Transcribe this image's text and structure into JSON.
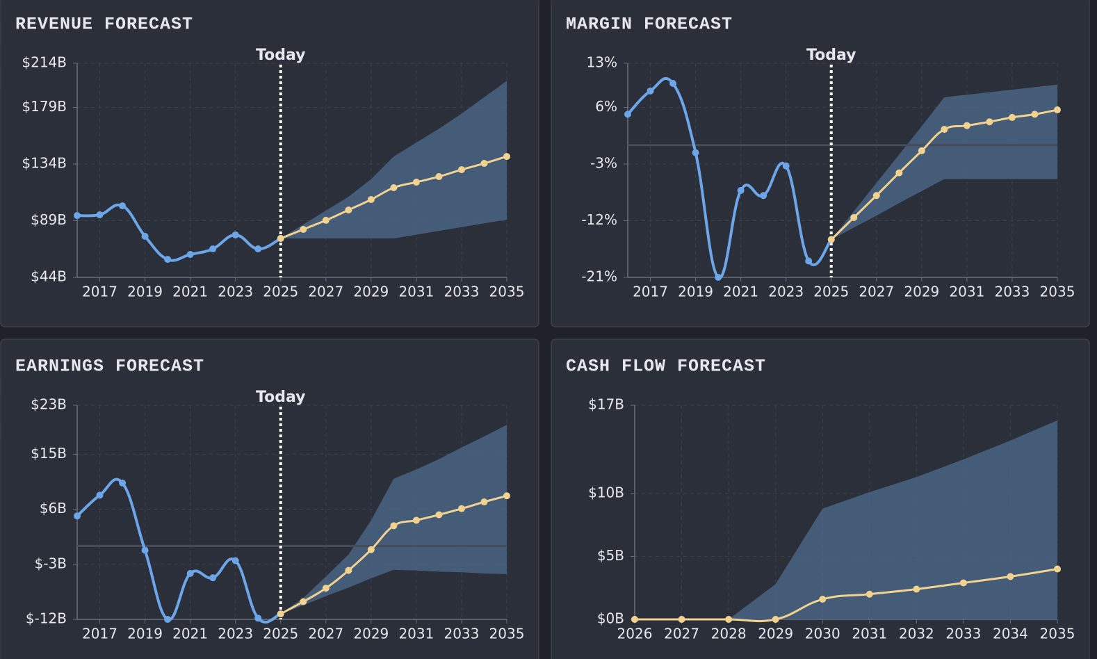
{
  "chart_data": [
    {
      "type": "line",
      "title": "REVENUE FORECAST",
      "x": [
        2016,
        2017,
        2018,
        2019,
        2020,
        2021,
        2022,
        2023,
        2024,
        2025,
        2026,
        2027,
        2028,
        2029,
        2030,
        2031,
        2032,
        2033,
        2034,
        2035
      ],
      "xlim": [
        2016,
        2035
      ],
      "xticks": [
        2017,
        2019,
        2021,
        2023,
        2025,
        2027,
        2029,
        2031,
        2033,
        2035
      ],
      "ylim": [
        44,
        214
      ],
      "yticks": [
        {
          "value": 44,
          "label": "$44B"
        },
        {
          "value": 89,
          "label": "$89B"
        },
        {
          "value": 134,
          "label": "$134B"
        },
        {
          "value": 179,
          "label": "$179B"
        },
        {
          "value": 214,
          "label": "$214B"
        }
      ],
      "grid": true,
      "annotation": {
        "x": 2025,
        "label": "Today"
      },
      "series": [
        {
          "color": "#6ca6e8",
          "values": [
            93.1,
            93.7,
            100.8,
            76.6,
            58.3,
            62.2,
            66.6,
            77.7,
            66.6,
            74.9,
            null,
            null,
            null,
            null,
            null,
            null,
            null,
            null,
            null,
            null
          ]
        },
        {
          "color": "#f2d28f",
          "values": [
            null,
            null,
            null,
            null,
            null,
            null,
            null,
            null,
            null,
            74.9,
            82.1,
            89.3,
            97.5,
            105.8,
            115.2,
            119.6,
            124.0,
            129.5,
            134.5,
            140.0
          ]
        }
      ],
      "band": {
        "color": "#4a6485",
        "low": [
          null,
          null,
          null,
          null,
          null,
          null,
          null,
          null,
          null,
          74.9,
          74.9,
          74.9,
          74.9,
          74.9,
          74.9,
          77.9,
          80.9,
          83.9,
          86.9,
          89.8
        ],
        "high": [
          null,
          null,
          null,
          null,
          null,
          null,
          null,
          null,
          null,
          74.9,
          86,
          97,
          108,
          122,
          140,
          151,
          162,
          174,
          187,
          200
        ]
      }
    },
    {
      "type": "line",
      "title": "MARGIN FORECAST",
      "x": [
        2016,
        2017,
        2018,
        2019,
        2020,
        2021,
        2022,
        2023,
        2024,
        2025,
        2026,
        2027,
        2028,
        2029,
        2030,
        2031,
        2032,
        2033,
        2034,
        2035
      ],
      "xlim": [
        2016,
        2035
      ],
      "xticks": [
        2017,
        2019,
        2021,
        2023,
        2025,
        2027,
        2029,
        2031,
        2033,
        2035
      ],
      "ylim": [
        -21,
        13
      ],
      "yticks": [
        {
          "value": -21,
          "label": "-21%"
        },
        {
          "value": -12,
          "label": "-12%"
        },
        {
          "value": -3,
          "label": "-3%"
        },
        {
          "value": 6,
          "label": "6%"
        },
        {
          "value": 13,
          "label": "13%"
        }
      ],
      "grid": true,
      "annotation": {
        "x": 2025,
        "label": "Today"
      },
      "series": [
        {
          "color": "#6ca6e8",
          "values": [
            4.9,
            8.6,
            9.8,
            -1.2,
            -21,
            -7.2,
            -8.0,
            -3.3,
            -18.4,
            -15.0,
            null,
            null,
            null,
            null,
            null,
            null,
            null,
            null,
            null,
            null
          ]
        },
        {
          "color": "#f2d28f",
          "values": [
            null,
            null,
            null,
            null,
            null,
            null,
            null,
            null,
            null,
            -15.0,
            -11.5,
            -8.0,
            -4.4,
            -0.9,
            2.5,
            3.1,
            3.7,
            4.4,
            4.9,
            5.6
          ]
        }
      ],
      "band": {
        "color": "#4a6485",
        "low": [
          null,
          null,
          null,
          null,
          null,
          null,
          null,
          null,
          null,
          -15,
          -13.1,
          -11.2,
          -9.2,
          -7.3,
          -5.4,
          -5.4,
          -5.4,
          -5.4,
          -5.4,
          -5.4
        ],
        "high": [
          null,
          null,
          null,
          null,
          null,
          null,
          null,
          null,
          null,
          -15,
          -10.5,
          -6,
          -1.5,
          3,
          7.6,
          8.0,
          8.4,
          8.8,
          9.2,
          9.6
        ]
      }
    },
    {
      "type": "line",
      "title": "EARNINGS FORECAST",
      "x": [
        2016,
        2017,
        2018,
        2019,
        2020,
        2021,
        2022,
        2023,
        2024,
        2025,
        2026,
        2027,
        2028,
        2029,
        2030,
        2031,
        2032,
        2033,
        2034,
        2035
      ],
      "xlim": [
        2016,
        2035
      ],
      "xticks": [
        2017,
        2019,
        2021,
        2023,
        2025,
        2027,
        2029,
        2031,
        2033,
        2035
      ],
      "ylim": [
        -12,
        23
      ],
      "yticks": [
        {
          "value": -12,
          "label": "$-12B"
        },
        {
          "value": -3,
          "label": "$-3B"
        },
        {
          "value": 6,
          "label": "$6B"
        },
        {
          "value": 15,
          "label": "$15B"
        },
        {
          "value": 23,
          "label": "$23B"
        }
      ],
      "grid": true,
      "annotation": {
        "x": 2025,
        "label": "Today"
      },
      "series": [
        {
          "color": "#6ca6e8",
          "values": [
            4.9,
            8.3,
            10.3,
            -0.7,
            -12,
            -4.5,
            -5.2,
            -2.4,
            -11.8,
            -11.1,
            null,
            null,
            null,
            null,
            null,
            null,
            null,
            null,
            null,
            null
          ]
        },
        {
          "color": "#f2d28f",
          "values": [
            null,
            null,
            null,
            null,
            null,
            null,
            null,
            null,
            null,
            -11.1,
            -9.1,
            -6.9,
            -4.0,
            -0.6,
            3.3,
            4.2,
            5.1,
            6.1,
            7.2,
            8.2
          ]
        }
      ],
      "band": {
        "color": "#4a6485",
        "low": [
          null,
          null,
          null,
          null,
          null,
          null,
          null,
          null,
          null,
          -11.1,
          -9.7,
          -8.2,
          -6.8,
          -5.3,
          -3.9,
          -4.0,
          -4.2,
          -4.3,
          -4.5,
          -4.6
        ],
        "high": [
          null,
          null,
          null,
          null,
          null,
          null,
          null,
          null,
          null,
          -11.1,
          -8.5,
          -5,
          -1.4,
          4.2,
          11.0,
          12.5,
          14.2,
          16.1,
          17.9,
          19.8
        ]
      }
    },
    {
      "type": "line",
      "title": "CASH FLOW FORECAST",
      "x": [
        2026,
        2027,
        2028,
        2029,
        2030,
        2031,
        2032,
        2033,
        2034,
        2035
      ],
      "xlim": [
        2026,
        2035
      ],
      "xticks": [
        2026,
        2027,
        2028,
        2029,
        2030,
        2031,
        2032,
        2033,
        2034,
        2035
      ],
      "ylim": [
        0,
        17
      ],
      "yticks": [
        {
          "value": 0,
          "label": "$0B"
        },
        {
          "value": 5,
          "label": "$5B"
        },
        {
          "value": 10,
          "label": "$10B"
        },
        {
          "value": 17,
          "label": "$17B"
        }
      ],
      "grid": true,
      "series": [
        {
          "color": "#f2d28f",
          "values": [
            0,
            0,
            0,
            0,
            1.6,
            2.0,
            2.4,
            2.9,
            3.4,
            4.0
          ]
        }
      ],
      "band": {
        "color": "#4a6485",
        "low": [
          0,
          0,
          0,
          0,
          0,
          0,
          0,
          0,
          0,
          0
        ],
        "high": [
          0,
          0,
          0,
          2.8,
          8.8,
          10.1,
          11.3,
          12.7,
          14.2,
          15.8
        ]
      }
    }
  ]
}
